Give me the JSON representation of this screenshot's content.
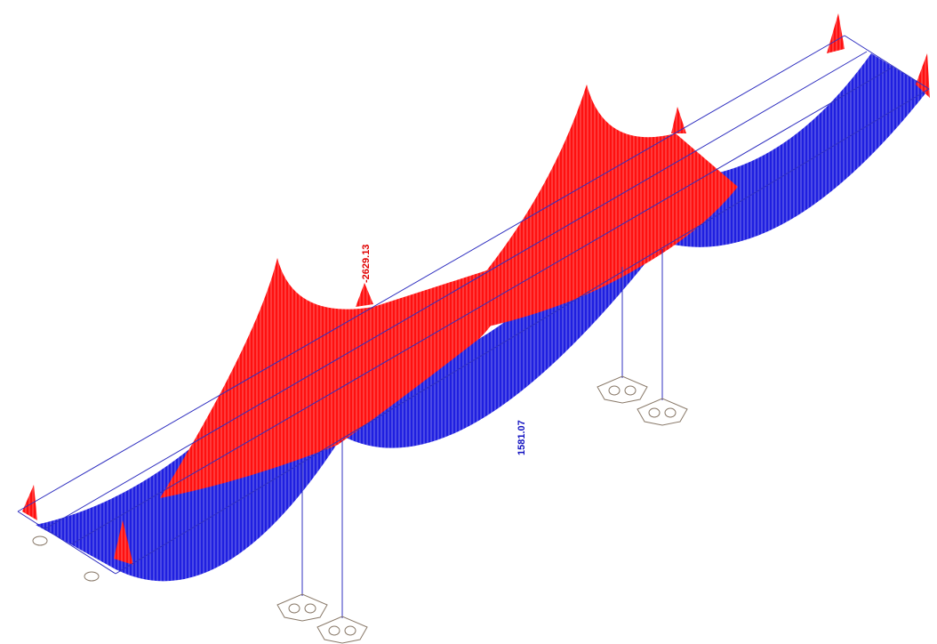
{
  "labels": {
    "max_negative": "-2629.13",
    "max_positive": "1581.07"
  }
}
